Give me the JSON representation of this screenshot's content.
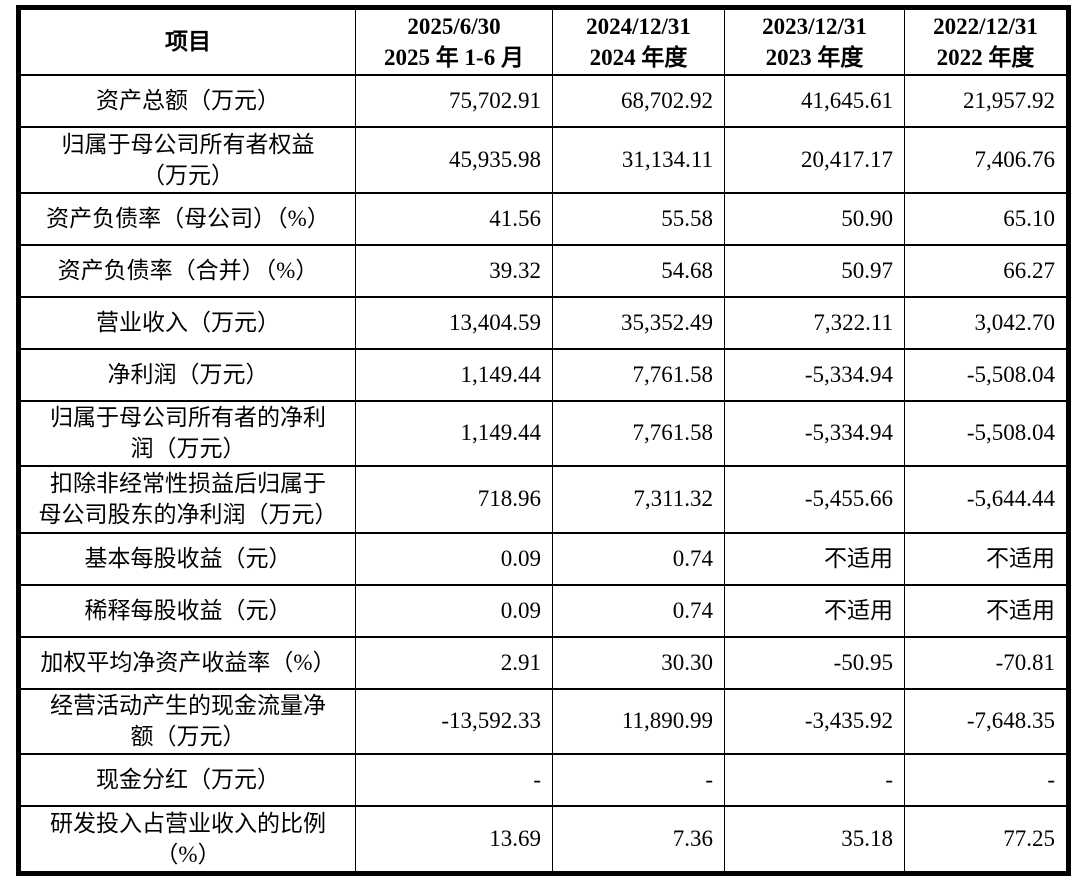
{
  "table": {
    "header": {
      "item_label": "项目",
      "columns": [
        [
          "2025/6/30",
          "2025 年 1-6 月"
        ],
        [
          "2024/12/31",
          "2024 年度"
        ],
        [
          "2023/12/31",
          "2023 年度"
        ],
        [
          "2022/12/31",
          "2022 年度"
        ]
      ]
    },
    "rows": [
      {
        "label": [
          "资产总额（万元）"
        ],
        "values": [
          "75,702.91",
          "68,702.92",
          "41,645.61",
          "21,957.92"
        ]
      },
      {
        "label": [
          "归属于母公司所有者权益",
          "（万元）"
        ],
        "values": [
          "45,935.98",
          "31,134.11",
          "20,417.17",
          "7,406.76"
        ]
      },
      {
        "label": [
          "资产负债率（母公司）（%）"
        ],
        "values": [
          "41.56",
          "55.58",
          "50.90",
          "65.10"
        ]
      },
      {
        "label": [
          "资产负债率（合并）（%）"
        ],
        "values": [
          "39.32",
          "54.68",
          "50.97",
          "66.27"
        ]
      },
      {
        "label": [
          "营业收入（万元）"
        ],
        "values": [
          "13,404.59",
          "35,352.49",
          "7,322.11",
          "3,042.70"
        ]
      },
      {
        "label": [
          "净利润（万元）"
        ],
        "values": [
          "1,149.44",
          "7,761.58",
          "-5,334.94",
          "-5,508.04"
        ]
      },
      {
        "label": [
          "归属于母公司所有者的净利",
          "润（万元）"
        ],
        "values": [
          "1,149.44",
          "7,761.58",
          "-5,334.94",
          "-5,508.04"
        ]
      },
      {
        "label": [
          "扣除非经常性损益后归属于",
          "母公司股东的净利润（万元）"
        ],
        "values": [
          "718.96",
          "7,311.32",
          "-5,455.66",
          "-5,644.44"
        ]
      },
      {
        "label": [
          "基本每股收益（元）"
        ],
        "values": [
          "0.09",
          "0.74",
          "不适用",
          "不适用"
        ]
      },
      {
        "label": [
          "稀释每股收益（元）"
        ],
        "values": [
          "0.09",
          "0.74",
          "不适用",
          "不适用"
        ]
      },
      {
        "label": [
          "加权平均净资产收益率（%）"
        ],
        "values": [
          "2.91",
          "30.30",
          "-50.95",
          "-70.81"
        ]
      },
      {
        "label": [
          "经营活动产生的现金流量净",
          "额（万元）"
        ],
        "values": [
          "-13,592.33",
          "11,890.99",
          "-3,435.92",
          "-7,648.35"
        ]
      },
      {
        "label": [
          "现金分红（万元）"
        ],
        "values": [
          "-",
          "-",
          "-",
          "-"
        ]
      },
      {
        "label": [
          "研发投入占营业收入的比例",
          "（%）"
        ],
        "values": [
          "13.69",
          "7.36",
          "35.18",
          "77.25"
        ]
      }
    ],
    "text_color": "#000000",
    "border_color": "#000000",
    "background_color": "#ffffff"
  }
}
